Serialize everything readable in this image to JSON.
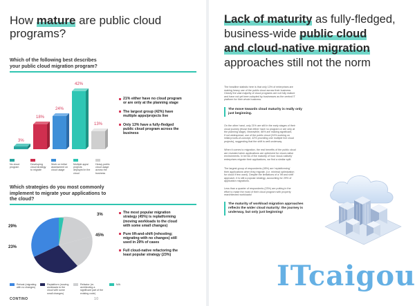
{
  "left": {
    "title_pre": "How ",
    "title_bold": "mature",
    "title_post": " are public cloud",
    "title_line2": "programs?",
    "q1_line1": "Which of the following best describes",
    "q1_line2": "your public cloud migration program?",
    "bar_values": [
      "3%",
      "18%",
      "24%",
      "42%",
      "13%"
    ],
    "bar_legend": [
      "No cloud program",
      "Developing cloud strategy to migrate",
      "Work on initial assessment on cloud usage",
      "Multiple apps/ projects deployed in the cloud",
      "Heavy public cloud usage across the business"
    ],
    "bullets1": [
      [
        "21% either have no cloud program",
        "or are only at the planning stage"
      ],
      [
        "The largest group (42%) have",
        "multiple apps/projects live"
      ],
      [
        "Only 13% have a fully-fledged",
        "public cloud program across the",
        "business"
      ]
    ],
    "q2_line1": "Which strategies do you most commonly",
    "q2_line2": "implement to migrate your applications to",
    "q2_line3": "the cloud?",
    "pie_labels": {
      "p29": "29%",
      "p23": "23%",
      "p3": "3%",
      "p45": "45%"
    },
    "pie_legend": [
      "Rehost (migrating with no changes)",
      "Replatform (moving workloads to the cloud with some small changes)",
      "Refactor (re-architecting a significant part of the existing code)",
      "N/A"
    ],
    "bullets2": [
      [
        "The most popular migration",
        "strategy (45%) is replatforming",
        "(moving workloads to the cloud",
        "with some small changes)"
      ],
      [
        "Pure lift-and-shift (rehosting;",
        "migrating with no changes) still",
        "used in 29% of cases"
      ],
      [
        "Full cloud-native refactoring the",
        "least popular strategy (23%)"
      ]
    ],
    "footer_brand": "CONTINO",
    "footer_page": "10"
  },
  "right": {
    "title_l1_bold": "Lack of maturity",
    "title_l1_rest": " as fully-fledged,",
    "title_l2_pre": "business-wide ",
    "title_l2_bold": "public cloud",
    "title_l3_bold": "and cloud-native migration",
    "title_l4": "approaches still not the norm",
    "para1": [
      "The headline statistic here is that only 13% of enterprises are",
      "making heavy use of the public cloud across their business.",
      "Clearly the vast majority of cloud programs are not fully mature",
      "and have not yet been adopted by businesses as the central IT",
      "platform for their whole business."
    ],
    "callout1": [
      "The move towards cloud maturity is really only",
      "just beginning."
    ],
    "para2": [
      "On the other hand, only 21% are still in the early stages of their",
      "cloud journey (those that either have no program or are only at",
      "the planning stage). Meanwhile, 66% are making significant,",
      "if not widespread, use of the public cloud (24% working on",
      "initial proofs-of-concept, 42% providing one multiple live cloud",
      "projects), suggesting that the shift is well underway."
    ],
    "para3": [
      "When it comes to migration, the real benefits of the public cloud",
      "are revealed when applications are optimized for cloud-native",
      "environments. In terms of the maturity of how 'cloud-natively'",
      "enterprises migrate their applications, we find a similar split."
    ],
    "para4": [
      "The largest group of respondents (45%) are 'replatforming'",
      "their applications when they migrate, (i.e. minimal optimization",
      "for cloud if few used). Despite the limitations of a 'lift and shift'",
      "approach, it is still a popular strategy, accounting for 29% of",
      "application migrations."
    ],
    "para5": [
      "Less than a quarter of respondents (23%) are putting in the",
      "effort to make the most of their cloud program with properly",
      "rearchitected workloads!"
    ],
    "callout2": [
      "The maturity of workload migration approaches",
      "reflects the wider cloud maturity: the journey is",
      "underway, but only just beginning!"
    ],
    "watermark": "ITcaigou"
  },
  "colors": {
    "teal": "#2ec4b0",
    "bar1": "#2aa6a0",
    "bar2": "#cf2f4f",
    "bar3": "#3e8fd8",
    "bar4": "#2fc6b4",
    "bar5": "#cfcfcf",
    "pie_rehost": "#3d86e0",
    "pie_replatform": "#cfd0d2",
    "pie_refactor": "#23265a",
    "pie_na": "#2ec4b0"
  }
}
